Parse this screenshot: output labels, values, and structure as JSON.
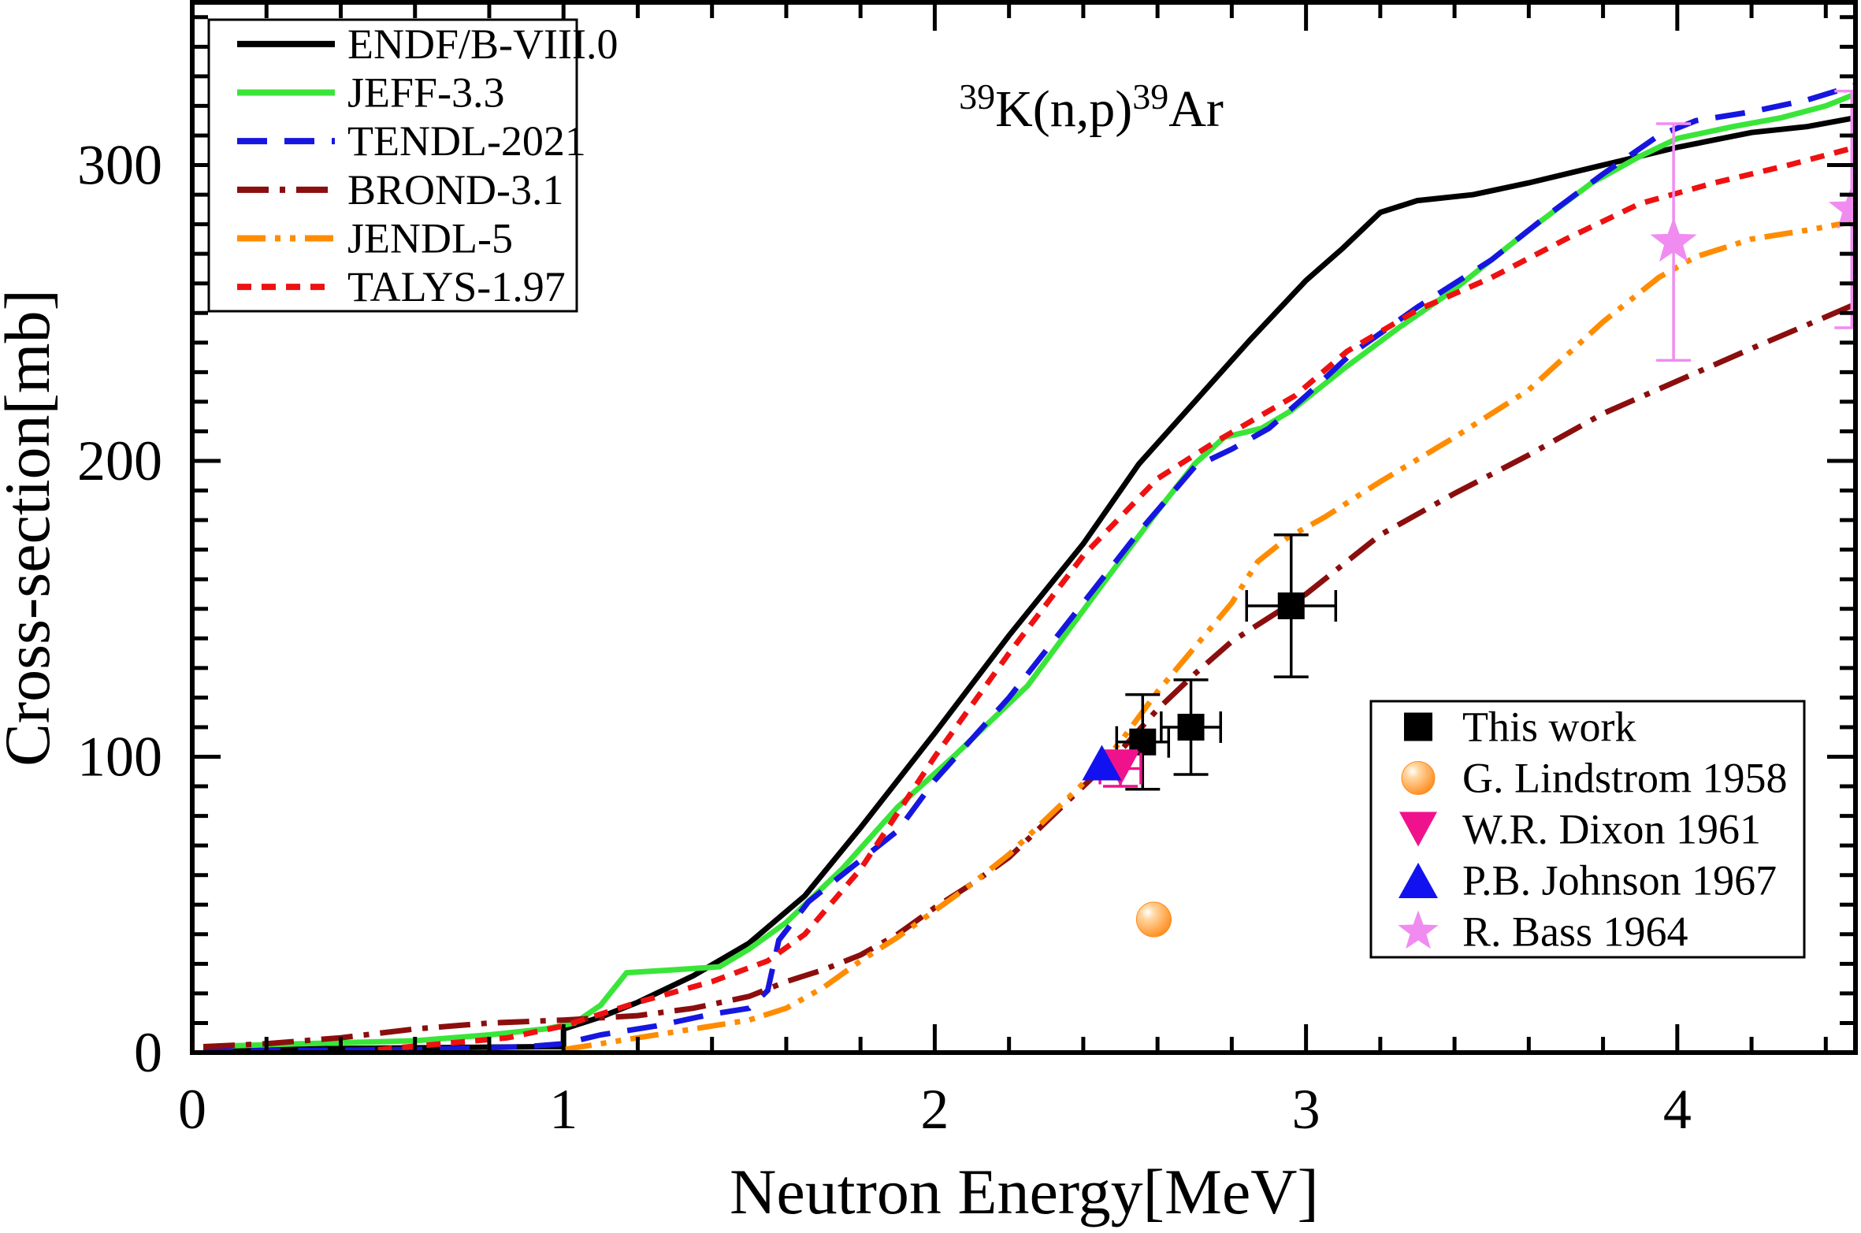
{
  "chart_data": {
    "type": "line",
    "title": "³⁹K(n,p)³⁹Ar",
    "title_parts": [
      {
        "text": "39",
        "sup": true
      },
      {
        "text": "K(n,p)",
        "sup": false
      },
      {
        "text": "39",
        "sup": true
      },
      {
        "text": "Ar",
        "sup": false
      }
    ],
    "xlabel": "Neutron Energy[MeV]",
    "ylabel": "Cross-section[mb]",
    "xlim": [
      0,
      4.48
    ],
    "ylim": [
      0,
      355
    ],
    "x_ticks": [
      0,
      1,
      2,
      3,
      4
    ],
    "x_minor_step": 0.2,
    "y_ticks": [
      0,
      100,
      200,
      300
    ],
    "y_minor_step": 10,
    "grid": false,
    "legend_libraries_position": "top-left",
    "legend_experiments_position": "bottom-right",
    "series": [
      {
        "name": "ENDF/B-VIII.0",
        "color": "#000000",
        "style": "solid",
        "points": [
          [
            0.03,
            1
          ],
          [
            0.5,
            1.5
          ],
          [
            0.95,
            2
          ],
          [
            1.0,
            2
          ],
          [
            1.0,
            8
          ],
          [
            1.1,
            12
          ],
          [
            1.2,
            17
          ],
          [
            1.35,
            26
          ],
          [
            1.5,
            37
          ],
          [
            1.65,
            53
          ],
          [
            1.8,
            76
          ],
          [
            2.0,
            108
          ],
          [
            2.2,
            141
          ],
          [
            2.4,
            172
          ],
          [
            2.55,
            199
          ],
          [
            2.7,
            220
          ],
          [
            2.85,
            241
          ],
          [
            3.0,
            261
          ],
          [
            3.1,
            272
          ],
          [
            3.2,
            284
          ],
          [
            3.3,
            288
          ],
          [
            3.45,
            290
          ],
          [
            3.6,
            294
          ],
          [
            3.8,
            300
          ],
          [
            4.0,
            306
          ],
          [
            4.2,
            311
          ],
          [
            4.35,
            313
          ],
          [
            4.48,
            316
          ]
        ]
      },
      {
        "name": "JEFF-3.3",
        "color": "#3AE53A",
        "style": "solid",
        "points": [
          [
            0.03,
            2
          ],
          [
            0.3,
            3
          ],
          [
            0.6,
            4
          ],
          [
            0.8,
            6
          ],
          [
            0.95,
            8
          ],
          [
            1.03,
            10
          ],
          [
            1.1,
            16
          ],
          [
            1.17,
            27
          ],
          [
            1.3,
            28
          ],
          [
            1.42,
            29
          ],
          [
            1.5,
            35
          ],
          [
            1.6,
            44
          ],
          [
            1.75,
            62
          ],
          [
            1.9,
            83
          ],
          [
            2.05,
            100
          ],
          [
            2.25,
            124
          ],
          [
            2.45,
            158
          ],
          [
            2.6,
            183
          ],
          [
            2.7,
            199
          ],
          [
            2.78,
            208
          ],
          [
            2.88,
            211
          ],
          [
            2.96,
            217
          ],
          [
            3.1,
            231
          ],
          [
            3.25,
            245
          ],
          [
            3.4,
            258
          ],
          [
            3.6,
            278
          ],
          [
            3.77,
            294
          ],
          [
            3.9,
            303
          ],
          [
            4.0,
            309
          ],
          [
            4.15,
            313
          ],
          [
            4.28,
            316
          ],
          [
            4.4,
            320
          ],
          [
            4.48,
            324
          ]
        ]
      },
      {
        "name": "TENDL-2021",
        "color": "#1616E0",
        "style": "dashed",
        "points": [
          [
            0.03,
            0.5
          ],
          [
            0.6,
            1
          ],
          [
            0.9,
            2
          ],
          [
            1.0,
            3
          ],
          [
            1.1,
            6
          ],
          [
            1.25,
            9
          ],
          [
            1.4,
            13
          ],
          [
            1.5,
            15
          ],
          [
            1.55,
            21
          ],
          [
            1.58,
            38
          ],
          [
            1.66,
            51
          ],
          [
            1.78,
            63
          ],
          [
            1.9,
            75
          ],
          [
            2.0,
            92
          ],
          [
            2.2,
            120
          ],
          [
            2.4,
            152
          ],
          [
            2.55,
            176
          ],
          [
            2.7,
            198
          ],
          [
            2.8,
            204
          ],
          [
            2.9,
            211
          ],
          [
            3.0,
            222
          ],
          [
            3.12,
            236
          ],
          [
            3.3,
            252
          ],
          [
            3.5,
            268
          ],
          [
            3.65,
            283
          ],
          [
            3.8,
            297
          ],
          [
            3.95,
            310
          ],
          [
            4.05,
            315
          ],
          [
            4.2,
            318
          ],
          [
            4.35,
            322
          ],
          [
            4.48,
            327
          ]
        ]
      },
      {
        "name": "BROND-3.1",
        "color": "#8B0E0E",
        "style": "dash-dot",
        "points": [
          [
            0.03,
            2
          ],
          [
            0.2,
            3
          ],
          [
            0.4,
            5
          ],
          [
            0.6,
            8
          ],
          [
            0.8,
            10
          ],
          [
            1.0,
            11
          ],
          [
            1.2,
            12.5
          ],
          [
            1.35,
            15
          ],
          [
            1.5,
            19
          ],
          [
            1.6,
            24
          ],
          [
            1.7,
            28
          ],
          [
            1.8,
            33
          ],
          [
            1.9,
            40
          ],
          [
            2.0,
            49
          ],
          [
            2.1,
            57
          ],
          [
            2.2,
            66
          ],
          [
            2.3,
            78
          ],
          [
            2.4,
            90
          ],
          [
            2.5,
            102
          ],
          [
            2.6,
            116
          ],
          [
            2.7,
            128
          ],
          [
            2.8,
            139
          ],
          [
            2.9,
            147
          ],
          [
            3.0,
            155
          ],
          [
            3.2,
            175
          ],
          [
            3.4,
            189
          ],
          [
            3.6,
            202
          ],
          [
            3.8,
            216
          ],
          [
            4.0,
            227
          ],
          [
            4.2,
            238
          ],
          [
            4.35,
            246
          ],
          [
            4.48,
            253
          ]
        ]
      },
      {
        "name": "JENDL-5",
        "color": "#FF8C00",
        "style": "dash-dot-dot",
        "points": [
          [
            1.0,
            1
          ],
          [
            1.1,
            3
          ],
          [
            1.2,
            5
          ],
          [
            1.35,
            8
          ],
          [
            1.5,
            11
          ],
          [
            1.6,
            15
          ],
          [
            1.7,
            22
          ],
          [
            1.8,
            31
          ],
          [
            1.9,
            39
          ],
          [
            2.0,
            48
          ],
          [
            2.1,
            57
          ],
          [
            2.2,
            67
          ],
          [
            2.3,
            79
          ],
          [
            2.4,
            91
          ],
          [
            2.5,
            105
          ],
          [
            2.6,
            122
          ],
          [
            2.7,
            137
          ],
          [
            2.8,
            152
          ],
          [
            2.87,
            166
          ],
          [
            2.95,
            174
          ],
          [
            3.05,
            181
          ],
          [
            3.2,
            193
          ],
          [
            3.4,
            208
          ],
          [
            3.6,
            224
          ],
          [
            3.8,
            247
          ],
          [
            3.95,
            262
          ],
          [
            4.05,
            269
          ],
          [
            4.2,
            275
          ],
          [
            4.35,
            278
          ],
          [
            4.48,
            281
          ]
        ]
      },
      {
        "name": "TALYS-1.97",
        "color": "#EE1111",
        "style": "short-dash",
        "points": [
          [
            0.5,
            1
          ],
          [
            0.85,
            5
          ],
          [
            1.0,
            9
          ],
          [
            1.2,
            17
          ],
          [
            1.4,
            24
          ],
          [
            1.55,
            31
          ],
          [
            1.65,
            40
          ],
          [
            1.8,
            62
          ],
          [
            2.0,
            100
          ],
          [
            2.2,
            135
          ],
          [
            2.4,
            168
          ],
          [
            2.6,
            194
          ],
          [
            2.75,
            206
          ],
          [
            2.97,
            222
          ],
          [
            3.11,
            237
          ],
          [
            3.3,
            251
          ],
          [
            3.5,
            262
          ],
          [
            3.7,
            275
          ],
          [
            3.9,
            287
          ],
          [
            4.1,
            294
          ],
          [
            4.3,
            300
          ],
          [
            4.48,
            306
          ]
        ]
      }
    ],
    "experimental": [
      {
        "name": "This work",
        "marker": "square",
        "color": "#000000",
        "points": [
          {
            "x": 2.56,
            "y": 105,
            "xerr": 0.07,
            "yerr": 16
          },
          {
            "x": 2.69,
            "y": 110,
            "xerr": 0.08,
            "yerr": 16
          },
          {
            "x": 2.96,
            "y": 151,
            "xerr": 0.12,
            "yerr": 24
          }
        ]
      },
      {
        "name": "G. Lindstrom 1958",
        "marker": "sphere",
        "color": "#FF8C1E",
        "points": [
          {
            "x": 2.59,
            "y": 45
          }
        ]
      },
      {
        "name": "W.R. Dixon 1961",
        "marker": "triangle-down",
        "color": "#F0128C",
        "points": [
          {
            "x": 2.5,
            "y": 96,
            "xerr": 0.055,
            "yerr": 6
          }
        ]
      },
      {
        "name": "P.B. Johnson 1967",
        "marker": "triangle-up",
        "color": "#1212F0",
        "points": [
          {
            "x": 2.45,
            "y": 98
          }
        ]
      },
      {
        "name": "R. Bass 1964",
        "marker": "star",
        "color": "#F08CF0",
        "points": [
          {
            "x": 3.99,
            "y": 274,
            "yerr": 40
          },
          {
            "x": 4.47,
            "y": 285,
            "yerr": 40
          }
        ]
      }
    ]
  }
}
